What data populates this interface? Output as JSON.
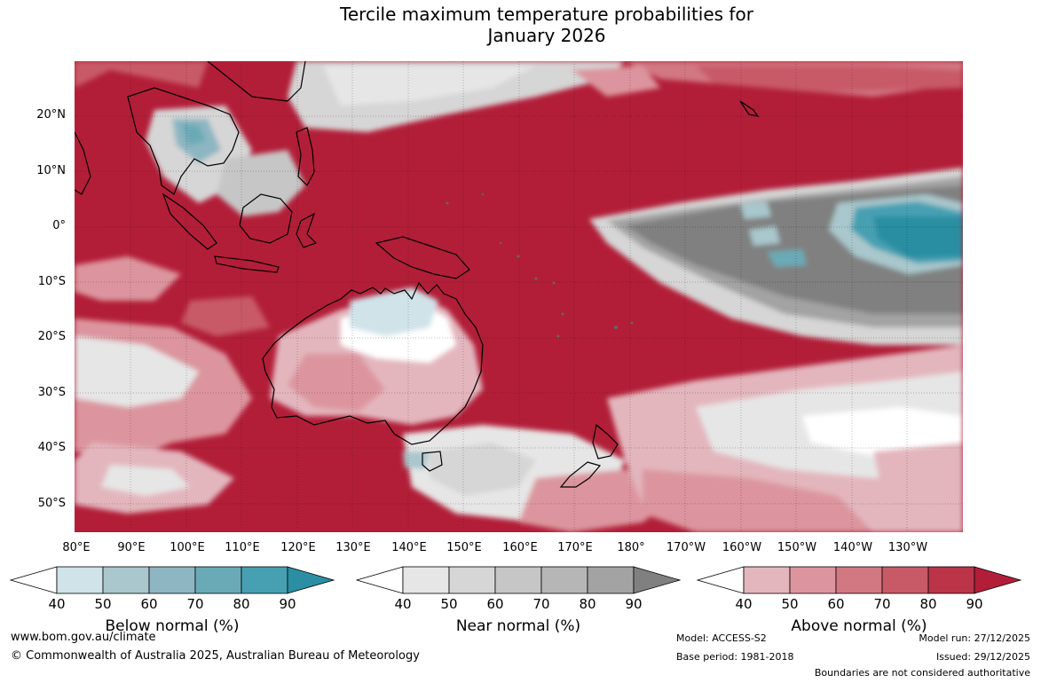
{
  "title_line1": "Tercile maximum temperature probabilities for",
  "title_line2": "January 2026",
  "lat_labels": [
    "20°N",
    "10°N",
    "0°",
    "10°S",
    "20°S",
    "30°S",
    "40°S",
    "50°S"
  ],
  "lon_labels": [
    "80°E",
    "90°E",
    "100°E",
    "110°E",
    "120°E",
    "130°E",
    "140°E",
    "150°E",
    "160°E",
    "170°E",
    "180°",
    "170°W",
    "160°W",
    "150°W",
    "140°W",
    "130°W"
  ],
  "legends": [
    {
      "title": "Below normal (%)",
      "ticks": [
        "40",
        "50",
        "60",
        "70",
        "80",
        "90"
      ],
      "colors": [
        "#cfe3e9",
        "#a9c7cc",
        "#8db6c2",
        "#6aaab6",
        "#46a0b2",
        "#2b8ea2"
      ]
    },
    {
      "title": "Near normal (%)",
      "ticks": [
        "40",
        "50",
        "60",
        "70",
        "80",
        "90"
      ],
      "colors": [
        "#e6e6e6",
        "#d6d6d6",
        "#c6c6c6",
        "#b6b6b6",
        "#a3a3a3",
        "#808080"
      ]
    },
    {
      "title": "Above normal (%)",
      "ticks": [
        "40",
        "50",
        "60",
        "70",
        "80",
        "90"
      ],
      "colors": [
        "#e3b6bd",
        "#dc959e",
        "#d27883",
        "#c85a68",
        "#bc3448",
        "#b21e38"
      ]
    }
  ],
  "footer": {
    "url": "www.bom.gov.au/climate",
    "copyright": "© Commonwealth of Australia 2025, Australian Bureau of Meteorology",
    "model": "Model: ACCESS-S2",
    "base_period": "Base period: 1981-2018",
    "model_run": "Model run: 27/12/2025",
    "issued": "Issued: 29/12/2025",
    "disclaimer": "Boundaries are not considered authoritative"
  },
  "colors": {
    "above_dominant": "#b21e38",
    "near_dominant": "#808080",
    "below_dominant": "#2b8ea2"
  }
}
